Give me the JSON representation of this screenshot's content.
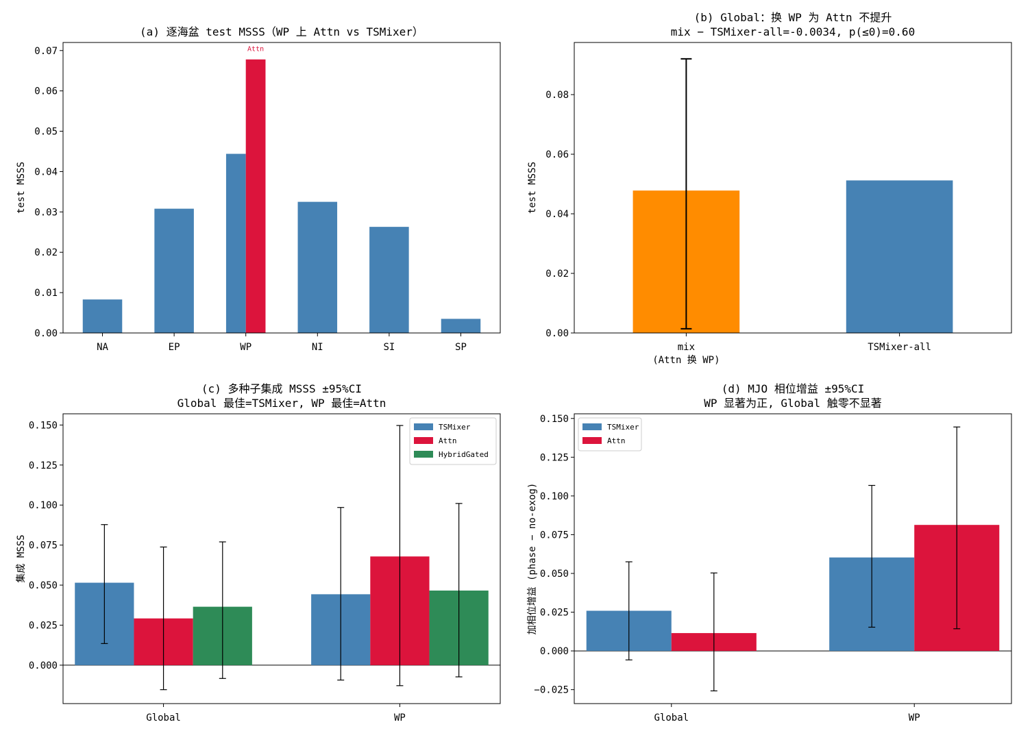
{
  "colors": {
    "tsmixer": "#4682b4",
    "attn": "#dc143c",
    "hybrid": "#2e8b57",
    "mix": "#ff8c00"
  },
  "chart_data": [
    {
      "id": "a",
      "type": "bar",
      "title": "(a) 逐海盆 test MSSS（WP 上 Attn vs TSMixer）",
      "ylabel": "test MSSS",
      "ylim": [
        0,
        0.072
      ],
      "yticks": [
        0.0,
        0.01,
        0.02,
        0.03,
        0.04,
        0.05,
        0.06,
        0.07
      ],
      "ytick_labels": [
        "0.00",
        "0.01",
        "0.02",
        "0.03",
        "0.04",
        "0.05",
        "0.06",
        "0.07"
      ],
      "categories": [
        "NA",
        "EP",
        "WP",
        "NI",
        "SI",
        "SP"
      ],
      "values": [
        0.0083,
        0.0308,
        0.0444,
        0.0325,
        0.0263,
        0.0035
      ],
      "highlight": {
        "category": "WP",
        "value": 0.0678,
        "label": "Attn"
      }
    },
    {
      "id": "b",
      "type": "bar",
      "title": [
        "(b) Global：换 WP 为 Attn 不提升",
        "mix − TSMixer-all=-0.0034, p(≤0)=0.60"
      ],
      "ylabel": "test MSSS",
      "ylim": [
        0,
        0.0975
      ],
      "yticks": [
        0.0,
        0.02,
        0.04,
        0.06,
        0.08
      ],
      "ytick_labels": [
        "0.00",
        "0.02",
        "0.04",
        "0.06",
        "0.08"
      ],
      "categories": [
        [
          "mix",
          "(Attn 换 WP)"
        ],
        [
          "TSMixer-all"
        ]
      ],
      "values": [
        0.0478,
        0.0512
      ],
      "error": [
        [
          0.0014,
          0.092
        ],
        null
      ]
    },
    {
      "id": "c",
      "type": "bar",
      "title": [
        "(c) 多种子集成 MSSS ±95%CI",
        "Global 最佳=TSMixer, WP 最佳=Attn"
      ],
      "ylabel": "集成 MSSS",
      "ylim": [
        -0.024,
        0.157
      ],
      "yticks": [
        0.0,
        0.025,
        0.05,
        0.075,
        0.1,
        0.125,
        0.15
      ],
      "ytick_labels": [
        "0.000",
        "0.025",
        "0.050",
        "0.075",
        "0.100",
        "0.125",
        "0.150"
      ],
      "categories": [
        "Global",
        "WP"
      ],
      "series": [
        {
          "name": "TSMixer",
          "values": [
            0.0515,
            0.0443
          ],
          "ci": [
            [
              0.0135,
              0.0878
            ],
            [
              -0.0093,
              0.0985
            ]
          ]
        },
        {
          "name": "Attn",
          "values": [
            0.0292,
            0.0679
          ],
          "ci": [
            [
              -0.0153,
              0.0738
            ],
            [
              -0.0128,
              0.1497
            ]
          ]
        },
        {
          "name": "HybridGated",
          "values": [
            0.0365,
            0.0466
          ],
          "ci": [
            [
              -0.0083,
              0.077
            ],
            [
              -0.0073,
              0.101
            ]
          ]
        }
      ],
      "legend": "top-right"
    },
    {
      "id": "d",
      "type": "bar",
      "title": [
        "(d) MJO 相位增益 ±95%CI",
        "WP 显著为正, Global 触零不显著"
      ],
      "ylabel": "加相位增益 (phase − no-exog)",
      "ylim": [
        -0.034,
        0.153
      ],
      "yticks": [
        -0.025,
        0.0,
        0.025,
        0.05,
        0.075,
        0.1,
        0.125,
        0.15
      ],
      "ytick_labels": [
        "−0.025",
        "0.000",
        "0.025",
        "0.050",
        "0.075",
        "0.100",
        "0.125",
        "0.150"
      ],
      "categories": [
        "Global",
        "WP"
      ],
      "series": [
        {
          "name": "TSMixer",
          "values": [
            0.0259,
            0.0603
          ],
          "ci": [
            [
              -0.0058,
              0.0575
            ],
            [
              0.0153,
              0.1068
            ]
          ]
        },
        {
          "name": "Attn",
          "values": [
            0.0115,
            0.0813
          ],
          "ci": [
            [
              -0.0258,
              0.0503
            ],
            [
              0.0143,
              0.1445
            ]
          ]
        }
      ],
      "legend": "top-left"
    }
  ]
}
